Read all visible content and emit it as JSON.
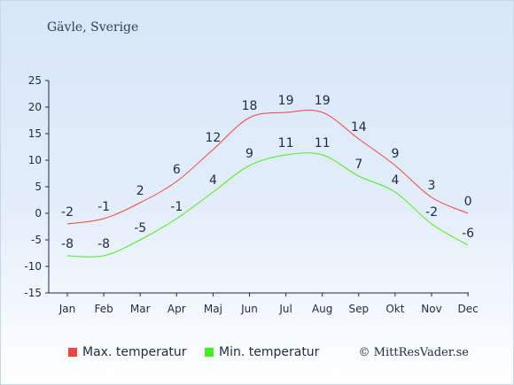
{
  "location": "Gävle, Sverige",
  "copyright": "© MittResVader.se",
  "chart_data": {
    "type": "line",
    "categories": [
      "Jan",
      "Feb",
      "Mar",
      "Apr",
      "Maj",
      "Jun",
      "Jul",
      "Aug",
      "Sep",
      "Okt",
      "Nov",
      "Dec"
    ],
    "series": [
      {
        "name": "Max. temperatur",
        "color": "#ee4444",
        "values": [
          -2,
          -1,
          2,
          6,
          12,
          18,
          19,
          19,
          14,
          9,
          3,
          0
        ]
      },
      {
        "name": "Min. temperatur",
        "color": "#44ee22",
        "values": [
          -8,
          -8,
          -5,
          -1,
          4,
          9,
          11,
          11,
          7,
          4,
          -2,
          -6
        ]
      }
    ],
    "yticks": [
      25,
      20,
      15,
      10,
      5,
      0,
      -5,
      -10,
      -15
    ],
    "ylim": [
      -15,
      25
    ],
    "grid": false,
    "legend": "bottom-left"
  }
}
